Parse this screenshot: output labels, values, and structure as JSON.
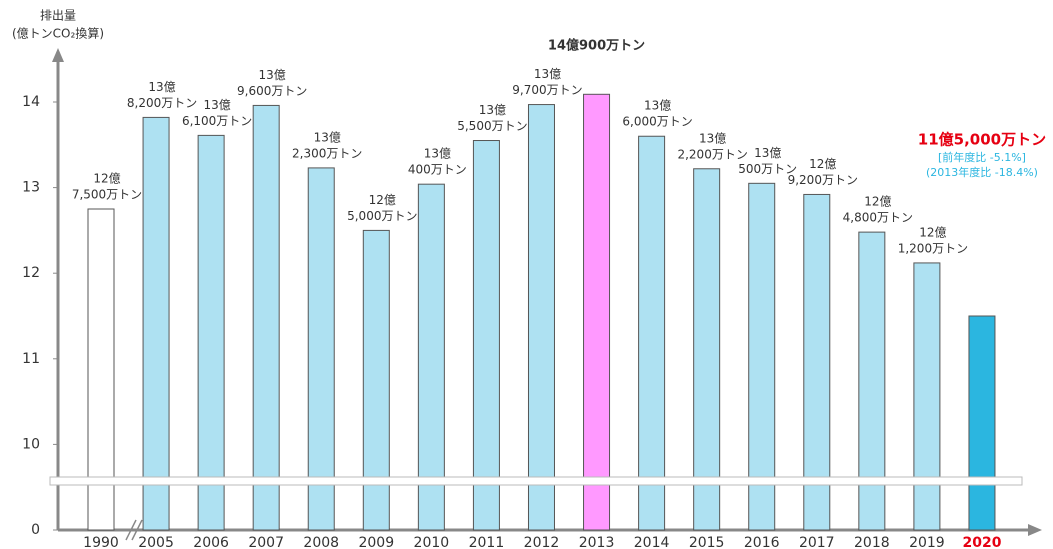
{
  "chart_data": {
    "type": "bar",
    "y_axis_label": [
      "排出量",
      "(億トンCO₂換算)"
    ],
    "categories": [
      "1990",
      "2005",
      "2006",
      "2007",
      "2008",
      "2009",
      "2010",
      "2011",
      "2012",
      "2013",
      "2014",
      "2015",
      "2016",
      "2017",
      "2018",
      "2019",
      "2020"
    ],
    "values": [
      12.75,
      13.82,
      13.61,
      13.96,
      13.23,
      12.5,
      13.04,
      13.55,
      13.97,
      14.09,
      13.6,
      13.22,
      13.05,
      12.92,
      12.48,
      12.12,
      11.5
    ],
    "value_labels": [
      [
        "12億",
        "7,500万トン"
      ],
      [
        "13億",
        "8,200万トン"
      ],
      [
        "13億",
        "6,100万トン"
      ],
      [
        "13億",
        "9,600万トン"
      ],
      [
        "13億",
        "2,300万トン"
      ],
      [
        "12億",
        "5,000万トン"
      ],
      [
        "13億",
        "400万トン"
      ],
      [
        "13億",
        "5,500万トン"
      ],
      [
        "13億",
        "9,700万トン"
      ],
      "14億900万トン",
      [
        "13億",
        "6,000万トン"
      ],
      [
        "13億",
        "2,200万トン"
      ],
      [
        "13億",
        "500万トン"
      ],
      [
        "12億",
        "9,200万トン"
      ],
      [
        "12億",
        "4,800万トン"
      ],
      [
        "12億",
        "1,200万トン"
      ],
      "11億5,000万トン"
    ],
    "colors": [
      "#ffffff",
      "#aee1f2",
      "#aee1f2",
      "#aee1f2",
      "#aee1f2",
      "#aee1f2",
      "#aee1f2",
      "#aee1f2",
      "#aee1f2",
      "#ff99ff",
      "#aee1f2",
      "#aee1f2",
      "#aee1f2",
      "#aee1f2",
      "#aee1f2",
      "#aee1f2",
      "#2bb6e0"
    ],
    "category_colors": [
      "#333333",
      "#333333",
      "#333333",
      "#333333",
      "#333333",
      "#333333",
      "#333333",
      "#333333",
      "#333333",
      "#333333",
      "#333333",
      "#333333",
      "#333333",
      "#333333",
      "#333333",
      "#333333",
      "#e60012"
    ],
    "value_label_colors": [
      "#333333",
      "#333333",
      "#333333",
      "#333333",
      "#333333",
      "#333333",
      "#333333",
      "#333333",
      "#333333",
      "#333333",
      "#333333",
      "#333333",
      "#333333",
      "#333333",
      "#333333",
      "#333333",
      "#e60012"
    ],
    "annotations": [
      {
        "text": "[前年度比 -5.1%]",
        "color": "#2bb6e0"
      },
      {
        "text": "(2013年度比 -18.4%)",
        "color": "#2bb6e0"
      }
    ],
    "ylim": [
      0,
      14.5
    ],
    "axis_break": [
      0,
      9
    ],
    "yticks": [
      0,
      10,
      11,
      12,
      13,
      14
    ]
  }
}
